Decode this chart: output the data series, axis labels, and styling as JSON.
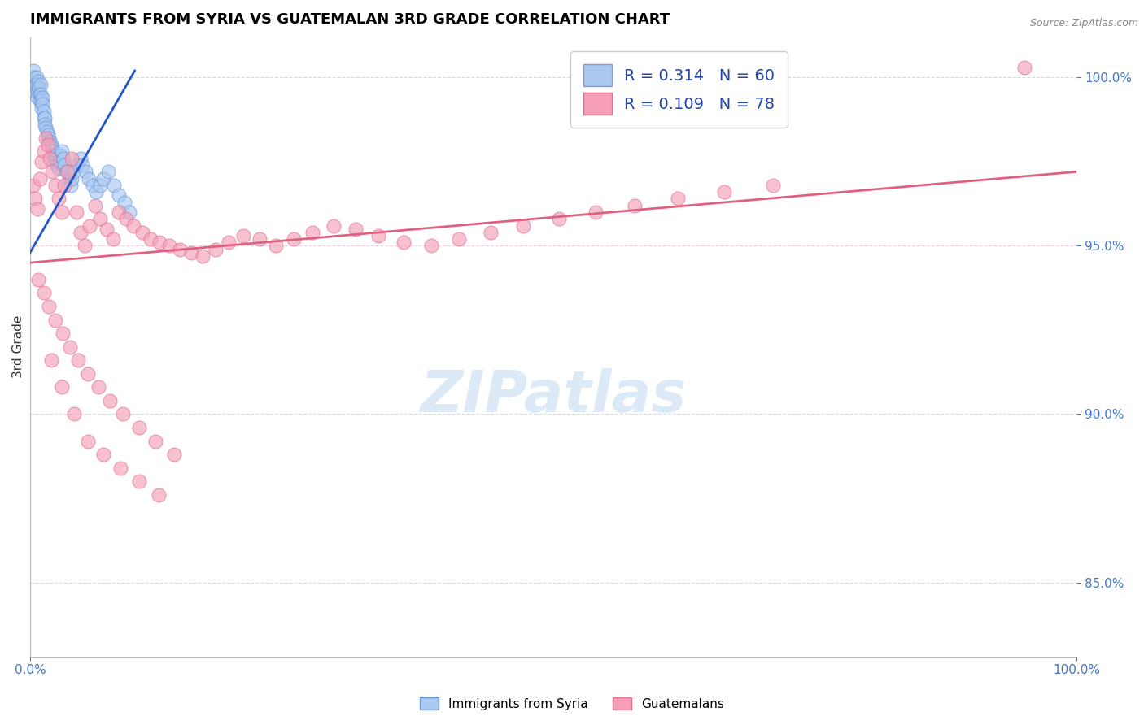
{
  "title": "IMMIGRANTS FROM SYRIA VS GUATEMALAN 3RD GRADE CORRELATION CHART",
  "source_text": "Source: ZipAtlas.com",
  "ylabel": "3rd Grade",
  "yticks": [
    0.85,
    0.9,
    0.95,
    1.0
  ],
  "ytick_labels": [
    "85.0%",
    "90.0%",
    "95.0%",
    "100.0%"
  ],
  "xlim": [
    0.0,
    1.0
  ],
  "ylim": [
    0.828,
    1.012
  ],
  "watermark": "ZIPatlas",
  "title_fontsize": 13,
  "syria_color": "#aac8f0",
  "syria_edge": "#6699dd",
  "guatemalan_color": "#f5a0b8",
  "guatemalan_edge": "#e07090",
  "syria_R": 0.314,
  "guatemalan_R": 0.109,
  "syria_line_color": "#2255cc",
  "guatemalan_line_color": "#e06080",
  "syria_line": {
    "x0": 0.0,
    "x1": 0.1,
    "y0": 0.948,
    "y1": 1.002
  },
  "guatemalan_line": {
    "x0": 0.0,
    "x1": 1.0,
    "y0": 0.945,
    "y1": 0.972
  },
  "syria_scatter_x": [
    0.002,
    0.003,
    0.004,
    0.005,
    0.005,
    0.006,
    0.006,
    0.007,
    0.007,
    0.008,
    0.008,
    0.009,
    0.009,
    0.01,
    0.01,
    0.011,
    0.011,
    0.012,
    0.012,
    0.013,
    0.013,
    0.014,
    0.014,
    0.015,
    0.016,
    0.017,
    0.018,
    0.019,
    0.02,
    0.021,
    0.022,
    0.023,
    0.024,
    0.025,
    0.026,
    0.027,
    0.028,
    0.029,
    0.03,
    0.032,
    0.033,
    0.035,
    0.037,
    0.039,
    0.04,
    0.042,
    0.045,
    0.048,
    0.05,
    0.053,
    0.056,
    0.06,
    0.063,
    0.067,
    0.07,
    0.075,
    0.08,
    0.085,
    0.09,
    0.095
  ],
  "syria_scatter_y": [
    0.998,
    1.002,
    1.0,
    0.998,
    0.996,
    1.0,
    0.998,
    0.996,
    0.994,
    0.999,
    0.997,
    0.995,
    0.993,
    0.998,
    0.995,
    0.993,
    0.991,
    0.994,
    0.992,
    0.99,
    0.988,
    0.988,
    0.986,
    0.985,
    0.984,
    0.983,
    0.982,
    0.981,
    0.98,
    0.979,
    0.978,
    0.977,
    0.976,
    0.975,
    0.974,
    0.973,
    0.975,
    0.977,
    0.978,
    0.976,
    0.974,
    0.972,
    0.97,
    0.968,
    0.97,
    0.972,
    0.974,
    0.976,
    0.974,
    0.972,
    0.97,
    0.968,
    0.966,
    0.968,
    0.97,
    0.972,
    0.968,
    0.965,
    0.963,
    0.96
  ],
  "guatemalan_scatter_x": [
    0.003,
    0.005,
    0.007,
    0.009,
    0.011,
    0.013,
    0.015,
    0.017,
    0.019,
    0.021,
    0.024,
    0.027,
    0.03,
    0.033,
    0.036,
    0.04,
    0.044,
    0.048,
    0.052,
    0.057,
    0.062,
    0.067,
    0.073,
    0.079,
    0.085,
    0.092,
    0.099,
    0.107,
    0.115,
    0.124,
    0.133,
    0.143,
    0.154,
    0.165,
    0.177,
    0.19,
    0.204,
    0.219,
    0.235,
    0.252,
    0.27,
    0.29,
    0.311,
    0.333,
    0.357,
    0.383,
    0.41,
    0.44,
    0.471,
    0.505,
    0.54,
    0.578,
    0.619,
    0.663,
    0.71,
    0.95,
    0.008,
    0.013,
    0.018,
    0.024,
    0.031,
    0.038,
    0.046,
    0.055,
    0.065,
    0.076,
    0.089,
    0.104,
    0.12,
    0.138,
    0.02,
    0.03,
    0.042,
    0.055,
    0.07,
    0.086,
    0.104,
    0.123
  ],
  "guatemalan_scatter_y": [
    0.968,
    0.964,
    0.961,
    0.97,
    0.975,
    0.978,
    0.982,
    0.98,
    0.976,
    0.972,
    0.968,
    0.964,
    0.96,
    0.968,
    0.972,
    0.976,
    0.96,
    0.954,
    0.95,
    0.956,
    0.962,
    0.958,
    0.955,
    0.952,
    0.96,
    0.958,
    0.956,
    0.954,
    0.952,
    0.951,
    0.95,
    0.949,
    0.948,
    0.947,
    0.949,
    0.951,
    0.953,
    0.952,
    0.95,
    0.952,
    0.954,
    0.956,
    0.955,
    0.953,
    0.951,
    0.95,
    0.952,
    0.954,
    0.956,
    0.958,
    0.96,
    0.962,
    0.964,
    0.966,
    0.968,
    1.003,
    0.94,
    0.936,
    0.932,
    0.928,
    0.924,
    0.92,
    0.916,
    0.912,
    0.908,
    0.904,
    0.9,
    0.896,
    0.892,
    0.888,
    0.916,
    0.908,
    0.9,
    0.892,
    0.888,
    0.884,
    0.88,
    0.876
  ]
}
